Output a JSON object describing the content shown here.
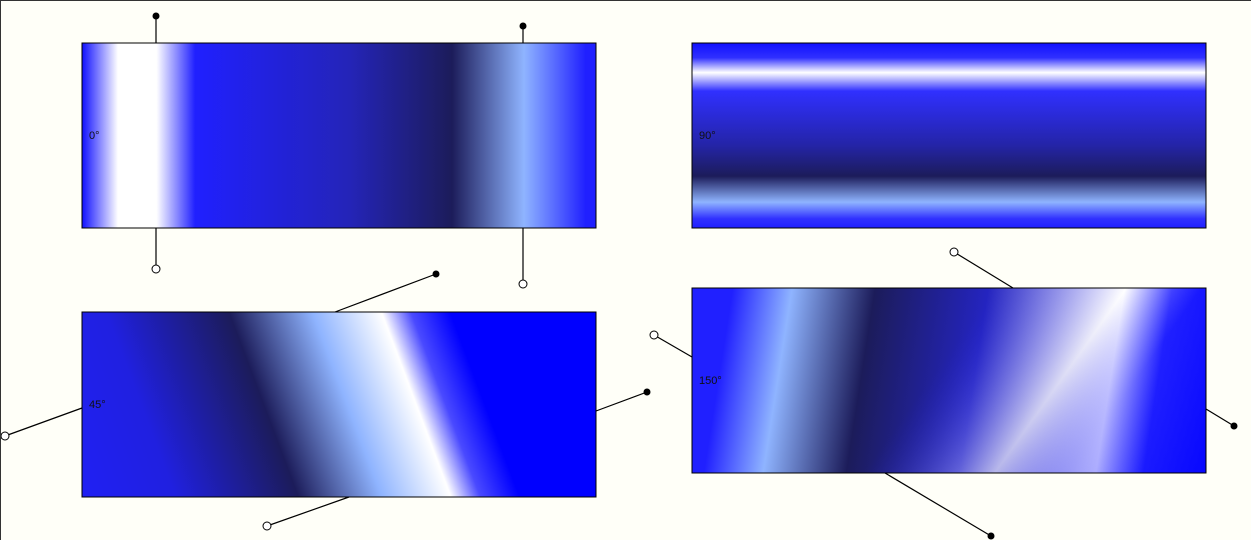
{
  "colors": {
    "background": "#fffff8",
    "blue": "#2020ff",
    "bright_blue": "#0000ff",
    "navy": "#1c1c5a",
    "white": "#ffffff",
    "light_blue": "#8fb4ff"
  },
  "panels": [
    {
      "label": "0°",
      "angle": 0
    },
    {
      "label": "90°",
      "angle": 90
    },
    {
      "label": "45°",
      "angle": 45
    },
    {
      "label": "150°",
      "angle": 150
    }
  ],
  "icons": {
    "start_handle": "open-circle-handle-icon",
    "end_handle": "filled-circle-handle-icon"
  }
}
